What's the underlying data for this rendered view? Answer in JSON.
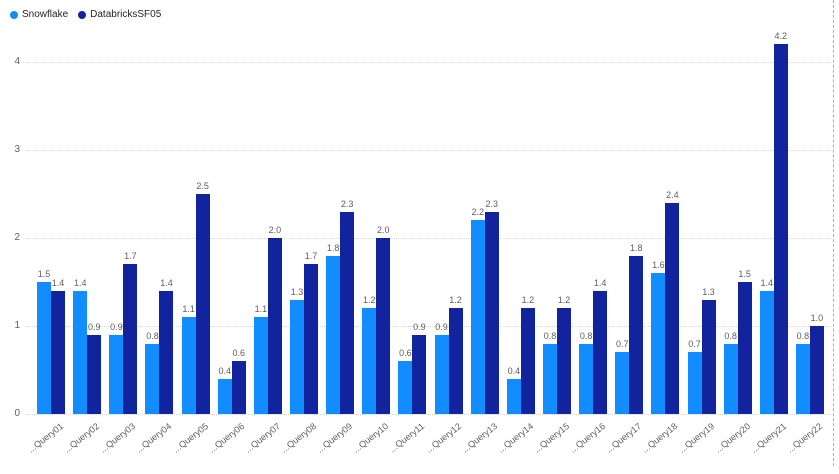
{
  "legend": {
    "items": [
      {
        "label": "Snowflake",
        "color": "#118DFF"
      },
      {
        "label": "DatabricksSF05",
        "color": "#12239E"
      }
    ]
  },
  "colors": {
    "snowflake": "#118DFF",
    "databricks": "#12239E",
    "axis_text": "#605e5c",
    "gridline": "#d6d6d6",
    "legend_text": "#252423"
  },
  "chart_data": {
    "type": "bar",
    "title": "",
    "xlabel": "",
    "ylabel": "",
    "legend_position": "top-left",
    "grid": "dotted-horizontal",
    "ylim": [
      0,
      4.5
    ],
    "yticks": [
      "0",
      "1",
      "2",
      "3",
      "4"
    ],
    "categories": [
      "...Query01",
      "...Query02",
      "...Query03",
      "...Query04",
      "...Query05",
      "...Query06",
      "...Query07",
      "...Query08",
      "...Query09",
      "...Query10",
      "...Query11",
      "...Query12",
      "...Query13",
      "...Query14",
      "...Query15",
      "...Query16",
      "...Query17",
      "...Query18",
      "...Query19",
      "...Query20",
      "...Query21",
      "...Query22"
    ],
    "series": [
      {
        "name": "Snowflake",
        "color": "#118DFF",
        "values": [
          1.5,
          1.4,
          0.9,
          0.8,
          1.1,
          0.4,
          1.1,
          1.3,
          1.8,
          1.2,
          0.6,
          0.9,
          2.2,
          0.4,
          0.8,
          0.8,
          0.7,
          1.6,
          0.7,
          0.8,
          1.4,
          0.8
        ]
      },
      {
        "name": "DatabricksSF05",
        "color": "#12239E",
        "values": [
          1.4,
          0.9,
          1.7,
          1.4,
          2.5,
          0.6,
          2.0,
          1.7,
          2.3,
          2.0,
          0.9,
          1.2,
          2.3,
          1.2,
          1.2,
          1.4,
          1.8,
          2.4,
          1.3,
          1.5,
          4.2,
          1.0
        ]
      }
    ],
    "data_labels_visible": true
  }
}
